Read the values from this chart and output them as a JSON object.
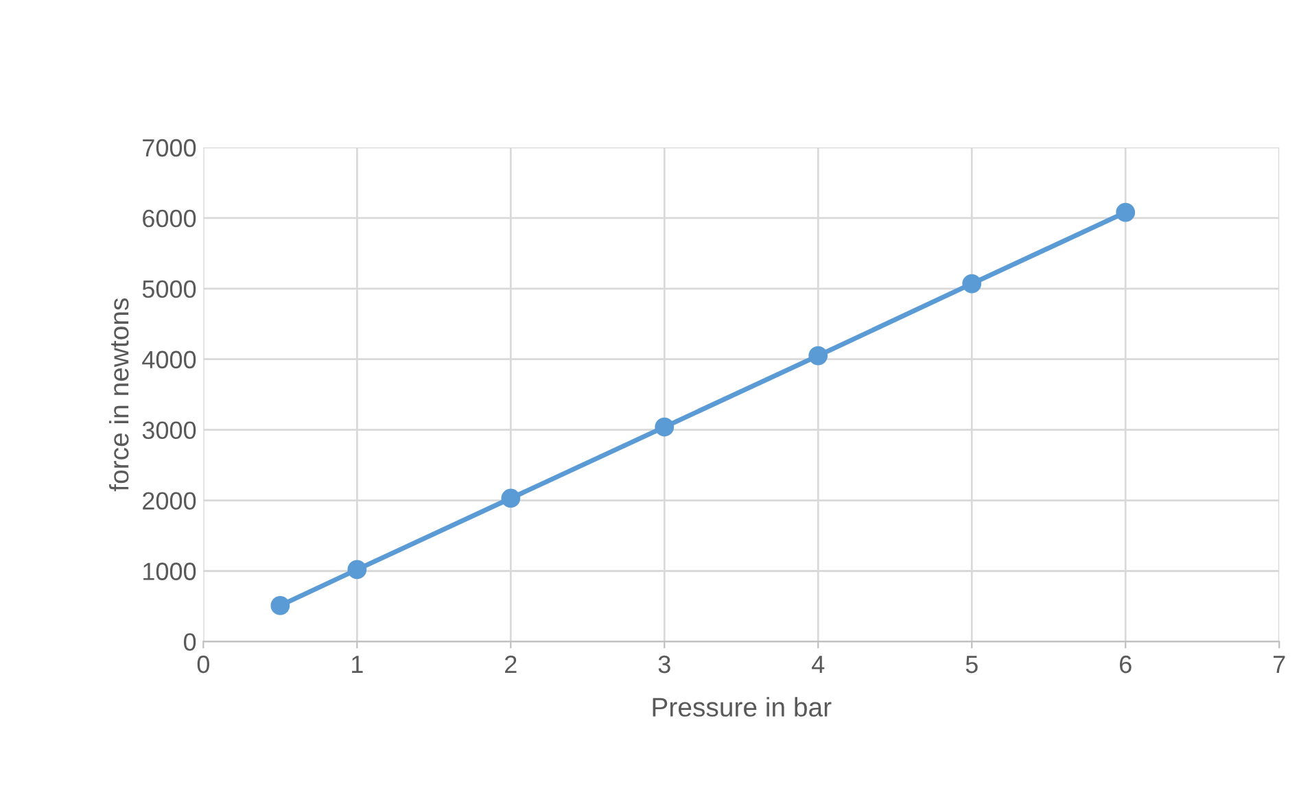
{
  "chart_data": {
    "type": "line",
    "xlabel": "Pressure in bar",
    "ylabel": "force in newtons",
    "x": [
      0.5,
      1,
      2,
      3,
      4,
      5,
      6
    ],
    "series": [
      {
        "color": "#5b9bd5",
        "values": [
          510,
          1020,
          2030,
          3040,
          4050,
          5070,
          6080
        ]
      }
    ],
    "xlim": [
      0,
      7
    ],
    "xticks": [
      0,
      1,
      2,
      3,
      4,
      5,
      6,
      7
    ],
    "ylim": [
      0,
      7000
    ],
    "yticks": [
      0,
      1000,
      2000,
      3000,
      4000,
      5000,
      6000,
      7000
    ],
    "grid": true,
    "marker": "circle",
    "line_style": "solid",
    "legend": false
  }
}
